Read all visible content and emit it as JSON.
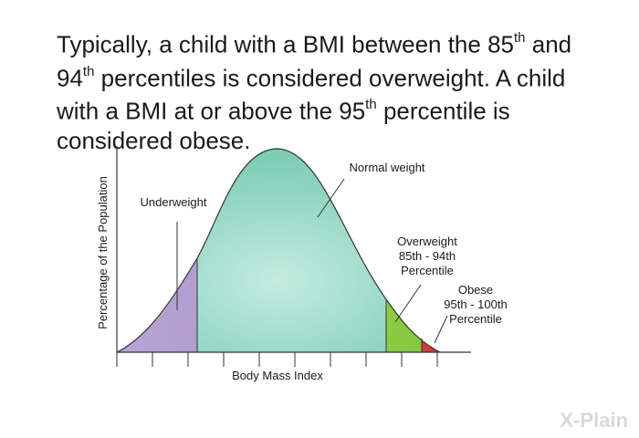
{
  "headline": {
    "p1": "Typically, a child with a BMI between the 85",
    "sup1": "th",
    "p2": " and 94",
    "sup2": "th",
    "p3": " percentiles is considered overweight. A child with a BMI at or above the 95",
    "sup3": "th",
    "p4": " percentile is considered obese."
  },
  "diagram": {
    "y_axis_label": "Percentage of the Population",
    "x_axis_label": "Body Mass Index",
    "regions": {
      "underweight": {
        "label": "Underweight",
        "color": "#a991c8"
      },
      "normal": {
        "label": "Normal weight",
        "color": "#8fd4bf"
      },
      "overweight": {
        "line1": "Overweight",
        "line2": "85th - 94th",
        "line3": "Percentile",
        "color": "#9ad24a"
      },
      "obese": {
        "line1": "Obese",
        "line2": "95th - 100th",
        "line3": "Percentile",
        "color": "#e0544c"
      }
    }
  },
  "logo": {
    "text": "X-Plain",
    "color": "#d9d9d9"
  }
}
